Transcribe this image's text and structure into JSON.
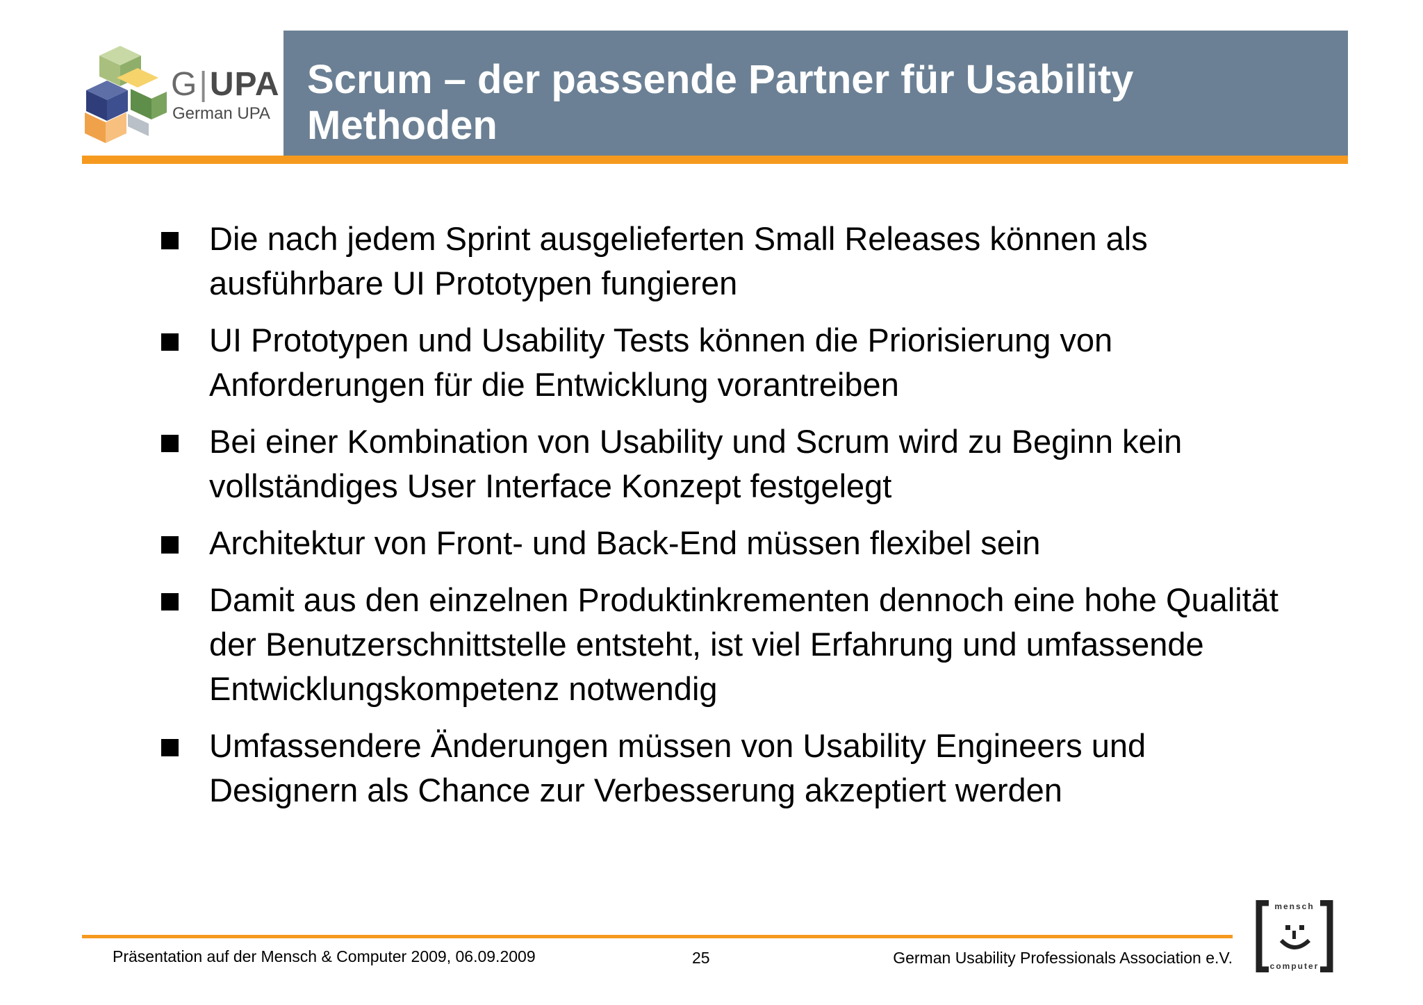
{
  "header": {
    "logo_brand_prefix": "G",
    "logo_brand_name": "UPA",
    "logo_subtitle": "German UPA",
    "title": "Scrum – der passende Partner für Usability Methoden"
  },
  "bullets": [
    "Die nach jedem Sprint ausgelieferten Small Releases können als ausführbare UI Prototypen fungieren",
    "UI Prototypen und Usability Tests können die Priorisierung von Anforderungen für die Entwicklung vorantreiben",
    "Bei einer Kombination von Usability und Scrum wird zu Beginn kein vollständiges User Interface Konzept festgelegt",
    "Architektur von Front- und Back-End müssen flexibel sein",
    "Damit aus den einzelnen Produktinkrementen dennoch eine hohe Qualität der Benutzerschnittstelle entsteht, ist viel Erfahrung und umfassende Entwicklungskompetenz notwendig",
    "Umfassendere Änderungen müssen von Usability Engineers und Designern als Chance zur Verbesserung akzeptiert werden"
  ],
  "footer": {
    "left": "Präsentation auf der Mensch & Computer 2009, 06.09.2009",
    "page_number": "25",
    "right": "German  Usability Professionals Association e.V.",
    "mc_logo_top": "mensch",
    "mc_logo_bottom": "computer"
  },
  "colors": {
    "title_bar": "#6b8094",
    "accent_orange": "#f59a1e"
  }
}
